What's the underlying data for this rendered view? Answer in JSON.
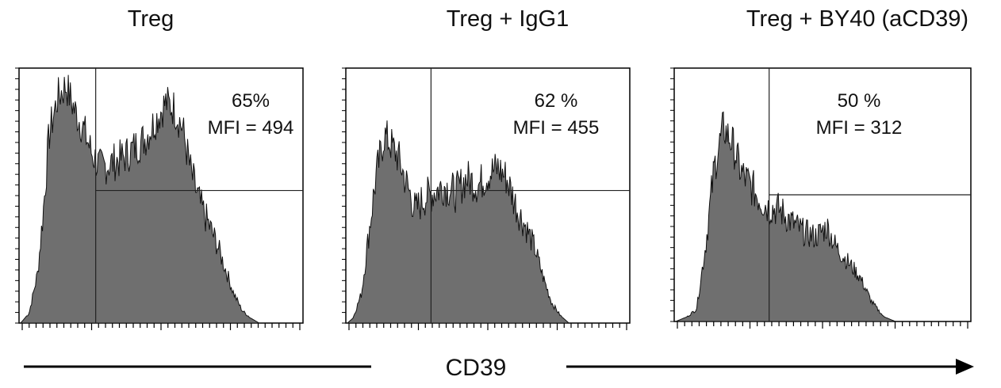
{
  "chart_data": [
    {
      "type": "area",
      "title": "Treg",
      "xlabel": "CD39",
      "annotation": {
        "percent": "65%",
        "mfi": "MFI = 494"
      },
      "gate_x": 0.27,
      "gate_level": 0.52,
      "profile": [
        [
          0,
          0
        ],
        [
          0.03,
          0.04
        ],
        [
          0.06,
          0.2
        ],
        [
          0.08,
          0.45
        ],
        [
          0.1,
          0.75
        ],
        [
          0.13,
          0.9
        ],
        [
          0.16,
          0.95
        ],
        [
          0.19,
          0.85
        ],
        [
          0.22,
          0.78
        ],
        [
          0.25,
          0.68
        ],
        [
          0.28,
          0.62
        ],
        [
          0.32,
          0.64
        ],
        [
          0.36,
          0.66
        ],
        [
          0.4,
          0.7
        ],
        [
          0.44,
          0.74
        ],
        [
          0.48,
          0.82
        ],
        [
          0.51,
          0.88
        ],
        [
          0.54,
          0.86
        ],
        [
          0.57,
          0.78
        ],
        [
          0.6,
          0.6
        ],
        [
          0.63,
          0.48
        ],
        [
          0.66,
          0.4
        ],
        [
          0.69,
          0.32
        ],
        [
          0.72,
          0.22
        ],
        [
          0.75,
          0.12
        ],
        [
          0.78,
          0.05
        ],
        [
          0.81,
          0.02
        ],
        [
          0.84,
          0
        ]
      ]
    },
    {
      "type": "area",
      "title": "Treg + IgG1",
      "xlabel": "CD39",
      "annotation": {
        "percent": "62 %",
        "mfi": "MFI = 455"
      },
      "gate_x": 0.3,
      "gate_level": 0.52,
      "profile": [
        [
          0,
          0
        ],
        [
          0.02,
          0.02
        ],
        [
          0.05,
          0.12
        ],
        [
          0.08,
          0.4
        ],
        [
          0.1,
          0.58
        ],
        [
          0.13,
          0.75
        ],
        [
          0.15,
          0.72
        ],
        [
          0.18,
          0.66
        ],
        [
          0.21,
          0.55
        ],
        [
          0.24,
          0.45
        ],
        [
          0.27,
          0.5
        ],
        [
          0.3,
          0.52
        ],
        [
          0.34,
          0.55
        ],
        [
          0.38,
          0.52
        ],
        [
          0.42,
          0.58
        ],
        [
          0.46,
          0.55
        ],
        [
          0.5,
          0.6
        ],
        [
          0.53,
          0.62
        ],
        [
          0.56,
          0.58
        ],
        [
          0.6,
          0.45
        ],
        [
          0.63,
          0.38
        ],
        [
          0.66,
          0.3
        ],
        [
          0.69,
          0.18
        ],
        [
          0.72,
          0.08
        ],
        [
          0.75,
          0.03
        ],
        [
          0.78,
          0
        ]
      ]
    },
    {
      "type": "area",
      "title": "Treg +  BY40 (aCD39)",
      "xlabel": "CD39",
      "annotation": {
        "percent": "50 %",
        "mfi": "MFI = 312"
      },
      "gate_x": 0.32,
      "gate_level": 0.5,
      "profile": [
        [
          0,
          0
        ],
        [
          0.04,
          0.02
        ],
        [
          0.07,
          0.05
        ],
        [
          0.1,
          0.3
        ],
        [
          0.13,
          0.62
        ],
        [
          0.16,
          0.78
        ],
        [
          0.19,
          0.72
        ],
        [
          0.22,
          0.6
        ],
        [
          0.25,
          0.55
        ],
        [
          0.28,
          0.5
        ],
        [
          0.31,
          0.46
        ],
        [
          0.35,
          0.45
        ],
        [
          0.39,
          0.4
        ],
        [
          0.43,
          0.36
        ],
        [
          0.47,
          0.34
        ],
        [
          0.51,
          0.38
        ],
        [
          0.54,
          0.3
        ],
        [
          0.58,
          0.24
        ],
        [
          0.62,
          0.18
        ],
        [
          0.66,
          0.08
        ],
        [
          0.7,
          0.02
        ],
        [
          0.74,
          0
        ]
      ]
    }
  ]
}
